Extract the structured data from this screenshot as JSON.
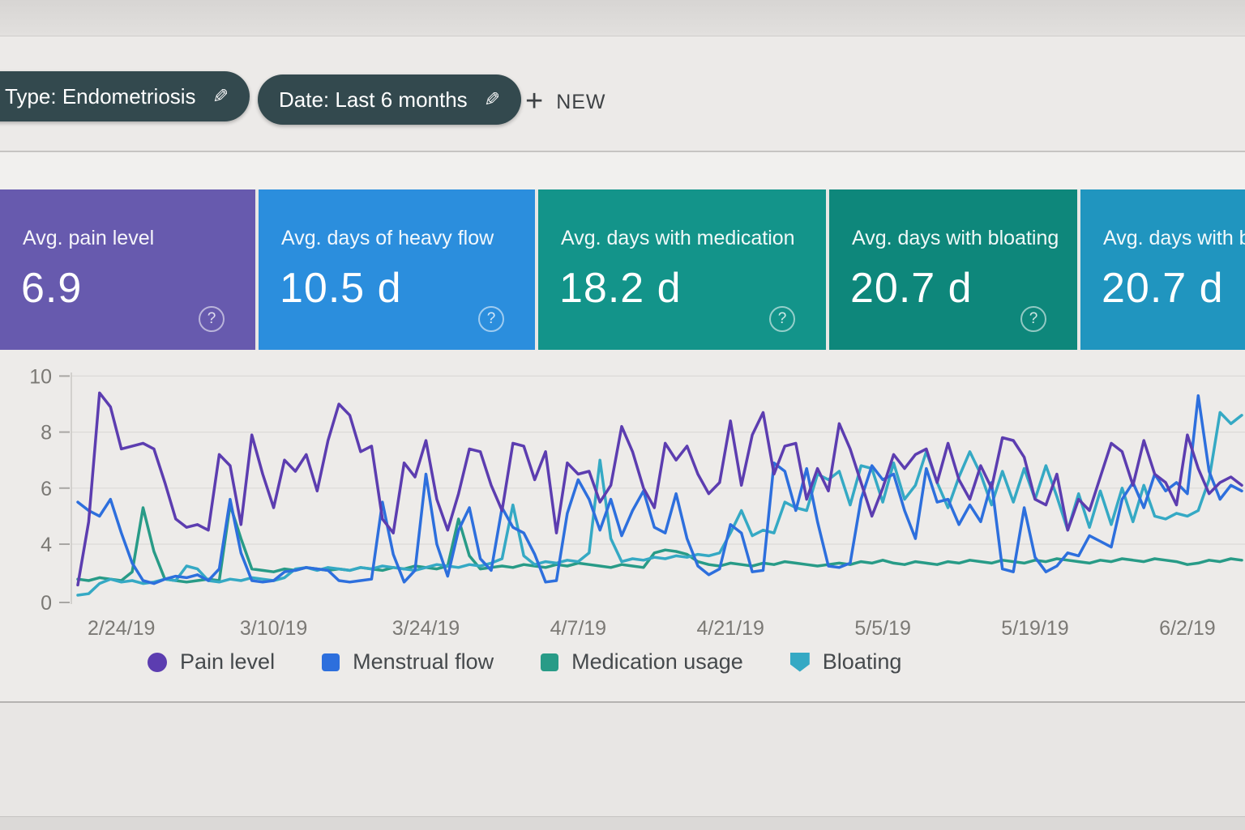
{
  "toolbar": {
    "type_chip_label": "Type: Endometriosis",
    "date_chip_label": "Date: Last 6 months",
    "new_button_label": "NEW",
    "chip_color": "#33494e"
  },
  "cards": [
    {
      "label": "Avg. pain level",
      "value": "6.9",
      "color": "#675aae",
      "help": "?"
    },
    {
      "label": "Avg. days of heavy flow",
      "value": "10.5 d",
      "color": "#2b8edd",
      "help": "?"
    },
    {
      "label": "Avg. days with medication",
      "value": "18.2 d",
      "color": "#13948a",
      "help": "?"
    },
    {
      "label": "Avg. days with bloating",
      "value": "20.7 d",
      "color": "#0e877b",
      "help": "?"
    },
    {
      "label": "Avg. days with bloating",
      "value": "20.7 d",
      "color": "#2095bf",
      "help": "?"
    }
  ],
  "chart_data": {
    "type": "line",
    "title": "",
    "xlabel": "",
    "ylabel": "",
    "ylim": [
      0,
      10
    ],
    "y_ticks": [
      10,
      8,
      6,
      4,
      0
    ],
    "grid": true,
    "legend_position": "bottom",
    "x_labels": [
      "2/24/19",
      "3/10/19",
      "3/24/19",
      "4/7/19",
      "4/21/19",
      "5/5/19",
      "5/19/19",
      "6/2/19"
    ],
    "x_label_day_offsets": [
      4,
      18,
      32,
      46,
      60,
      74,
      88,
      102
    ],
    "series": [
      {
        "name": "Pain level",
        "color": "#5c3db0",
        "marker": "circle",
        "values": [
          1.2,
          4.8,
          9.4,
          8.9,
          7.4,
          7.5,
          7.6,
          7.4,
          6.2,
          4.9,
          4.6,
          4.7,
          4.5,
          7.2,
          6.8,
          4.7,
          7.9,
          6.5,
          5.3,
          7.0,
          6.6,
          7.2,
          5.9,
          7.7,
          9.0,
          8.6,
          7.3,
          7.5,
          4.9,
          4.4,
          6.9,
          6.4,
          7.7,
          5.6,
          4.5,
          5.8,
          7.4,
          7.3,
          6.1,
          5.2,
          7.6,
          7.5,
          6.3,
          7.3,
          4.4,
          6.9,
          6.5,
          6.6,
          5.5,
          6.1,
          8.2,
          7.3,
          6.0,
          5.3,
          7.6,
          7.0,
          7.5,
          6.5,
          5.8,
          6.2,
          8.4,
          6.1,
          7.9,
          8.7,
          6.5,
          7.5,
          7.6,
          5.6,
          6.7,
          5.9,
          8.3,
          7.4,
          6.2,
          5.0,
          6.0,
          7.2,
          6.7,
          7.2,
          7.4,
          6.2,
          7.6,
          6.3,
          5.6,
          6.8,
          6.0,
          7.8,
          7.7,
          7.1,
          5.6,
          5.4,
          6.5,
          4.5,
          5.6,
          5.2,
          6.4,
          7.6,
          7.3,
          6.1,
          7.7,
          6.5,
          6.2,
          5.4,
          7.9,
          6.7,
          5.8,
          6.2,
          6.4,
          6.1
        ]
      },
      {
        "name": "Menstrual flow",
        "color": "#2d6fdd",
        "marker": "square",
        "values": [
          5.5,
          5.2,
          5.0,
          5.6,
          4.4,
          2.7,
          1.5,
          1.3,
          1.6,
          1.8,
          1.7,
          1.9,
          1.5,
          2.3,
          5.6,
          3.4,
          1.5,
          1.4,
          1.5,
          2.1,
          2.2,
          2.4,
          2.3,
          2.2,
          1.5,
          1.4,
          1.5,
          1.6,
          5.5,
          3.3,
          1.4,
          2.2,
          6.5,
          4.0,
          1.8,
          4.5,
          5.3,
          3.0,
          2.2,
          5.3,
          4.6,
          4.4,
          3.3,
          1.4,
          1.5,
          5.1,
          6.3,
          5.6,
          4.5,
          5.6,
          4.3,
          5.2,
          5.9,
          4.6,
          4.4,
          5.8,
          4.2,
          2.5,
          1.9,
          2.3,
          4.7,
          4.4,
          2.1,
          2.2,
          6.9,
          6.6,
          5.2,
          6.7,
          4.8,
          2.5,
          2.4,
          2.7,
          5.6,
          6.8,
          6.3,
          6.5,
          5.2,
          4.2,
          6.7,
          5.5,
          5.6,
          4.7,
          5.4,
          4.8,
          6.2,
          2.3,
          2.1,
          5.3,
          3.1,
          2.1,
          2.5,
          3.4,
          3.2,
          4.3,
          4.1,
          3.8,
          5.6,
          6.2,
          5.3,
          6.5,
          5.9,
          6.2,
          5.8,
          9.3,
          6.6,
          5.6,
          6.1,
          5.9
        ]
      },
      {
        "name": "Medication usage",
        "color": "#289b87",
        "marker": "square",
        "values": [
          1.6,
          1.5,
          1.7,
          1.6,
          1.5,
          2.1,
          5.3,
          3.5,
          1.6,
          1.5,
          1.4,
          1.5,
          1.6,
          1.5,
          5.4,
          4.2,
          2.3,
          2.2,
          2.1,
          2.3,
          2.2,
          2.4,
          2.3,
          2.2,
          2.3,
          2.2,
          2.4,
          2.3,
          2.2,
          2.4,
          2.3,
          2.5,
          2.4,
          2.3,
          2.5,
          4.9,
          3.2,
          2.3,
          2.4,
          2.5,
          2.4,
          2.6,
          2.5,
          2.4,
          2.6,
          2.5,
          2.7,
          2.6,
          2.5,
          2.4,
          2.6,
          2.5,
          2.4,
          3.4,
          3.6,
          3.5,
          3.3,
          2.8,
          2.6,
          2.5,
          2.7,
          2.6,
          2.5,
          2.7,
          2.6,
          2.8,
          2.7,
          2.6,
          2.5,
          2.6,
          2.7,
          2.6,
          2.8,
          2.7,
          2.9,
          2.7,
          2.6,
          2.8,
          2.7,
          2.6,
          2.8,
          2.7,
          2.9,
          2.8,
          2.7,
          2.9,
          2.8,
          2.7,
          2.9,
          2.8,
          3.0,
          2.9,
          2.8,
          2.7,
          2.9,
          2.8,
          3.0,
          2.9,
          2.8,
          3.0,
          2.9,
          2.8,
          2.6,
          2.7,
          2.9,
          2.8,
          3.0,
          2.9
        ]
      },
      {
        "name": "Bloating",
        "color": "#35a9c4",
        "marker": "pentagon",
        "values": [
          0.5,
          0.6,
          1.3,
          1.6,
          1.4,
          1.5,
          1.3,
          1.4,
          1.6,
          1.5,
          2.5,
          2.3,
          1.5,
          1.4,
          1.6,
          1.5,
          1.7,
          1.6,
          1.5,
          1.7,
          2.3,
          2.4,
          2.2,
          2.4,
          2.3,
          2.2,
          2.4,
          2.3,
          2.5,
          2.4,
          2.3,
          2.2,
          2.4,
          2.6,
          2.5,
          2.4,
          2.6,
          2.5,
          2.7,
          3.0,
          5.4,
          3.2,
          2.6,
          2.8,
          2.7,
          2.9,
          2.8,
          3.4,
          7.0,
          4.2,
          2.8,
          3.0,
          2.9,
          3.1,
          3.0,
          3.2,
          3.1,
          3.3,
          3.2,
          3.4,
          4.4,
          5.2,
          4.3,
          4.5,
          4.4,
          5.5,
          5.3,
          5.2,
          6.5,
          6.3,
          6.6,
          5.4,
          6.8,
          6.7,
          5.5,
          6.9,
          5.6,
          6.1,
          7.3,
          6.2,
          5.3,
          6.4,
          7.3,
          6.5,
          5.4,
          6.6,
          5.5,
          6.7,
          5.6,
          6.8,
          5.7,
          4.5,
          5.8,
          4.6,
          5.9,
          4.7,
          6.0,
          4.8,
          6.1,
          5.0,
          4.9,
          5.1,
          5.0,
          5.2,
          6.3,
          8.7,
          8.3,
          8.6
        ]
      }
    ]
  }
}
